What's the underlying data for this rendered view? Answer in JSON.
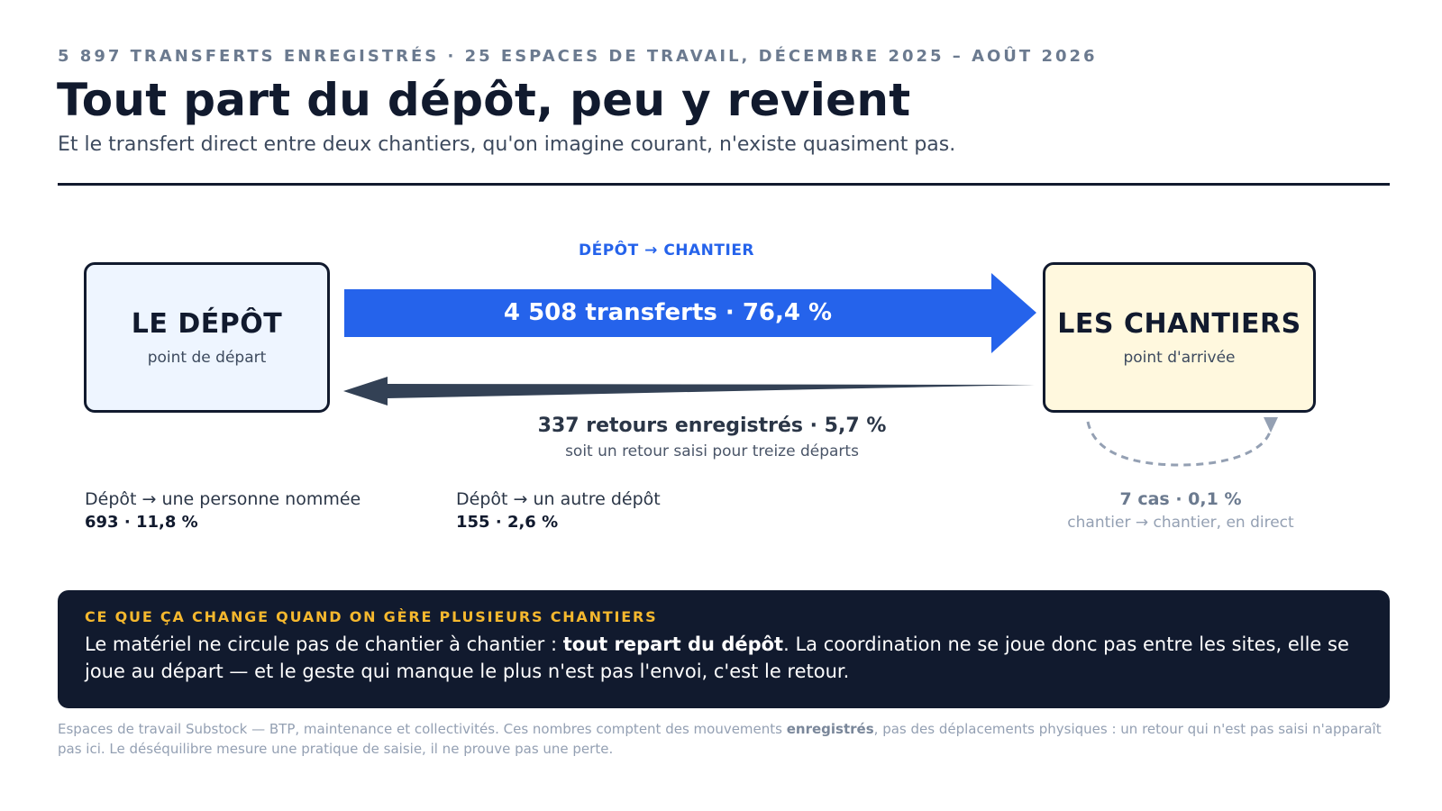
{
  "header": {
    "kicker": "5 897 TRANSFERTS ENREGISTRÉS · 25 ESPACES DE TRAVAIL, DÉCEMBRE 2025 – AOÛT 2026",
    "title": "Tout part du dépôt, peu y revient",
    "subtitle": "Et le transfert direct entre deux chantiers, qu'on imagine courant, n'existe quasiment pas."
  },
  "diagram": {
    "depot": {
      "title": "LE DÉPÔT",
      "subtitle": "point de départ"
    },
    "chantiers": {
      "title": "LES CHANTIERS",
      "subtitle": "point d'arrivée"
    },
    "forward": {
      "label": "DÉPÔT → CHANTIER",
      "value": "4 508 transferts · 76,4 %",
      "share": 76.4,
      "color": "#2563eb"
    },
    "returns": {
      "value": "337 retours enregistrés · 5,7 %",
      "note": "soit un retour saisi pour treize départs",
      "share": 5.7,
      "color": "#334155"
    },
    "to_person": {
      "label": "Dépôt → une personne nommée",
      "value": "693 · 11,8 %"
    },
    "to_other_depot": {
      "label": "Dépôt → un autre dépôt",
      "value": "155 · 2,6 %"
    },
    "direct": {
      "value": "7 cas · 0,1 %",
      "label": "chantier → chantier, en direct"
    }
  },
  "callout": {
    "kicker": "CE QUE ÇA CHANGE QUAND ON GÈRE PLUSIEURS CHANTIERS",
    "text_before": "Le matériel ne circule pas de chantier à chantier : ",
    "text_bold": "tout repart du dépôt",
    "text_after": ". La coordination ne se joue donc pas entre les sites, elle se joue au départ — et le geste qui manque le plus n'est pas l'envoi, c'est le retour."
  },
  "footnote": {
    "text_before": "Espaces de travail Substock — BTP, maintenance et collectivités. Ces nombres comptent des mouvements ",
    "text_bold": "enregistrés",
    "text_after": ", pas des déplacements physiques : un retour qui n'est pas saisi n'apparaît pas ici. Le déséquilibre mesure une pratique de saisie, il ne prouve pas une perte."
  },
  "colors": {
    "ink": "#111a2e",
    "accent_blue": "#2563eb",
    "accent_gold": "#f5b82e",
    "depot_fill": "#eef5ff",
    "chantier_fill": "#fff8de"
  }
}
